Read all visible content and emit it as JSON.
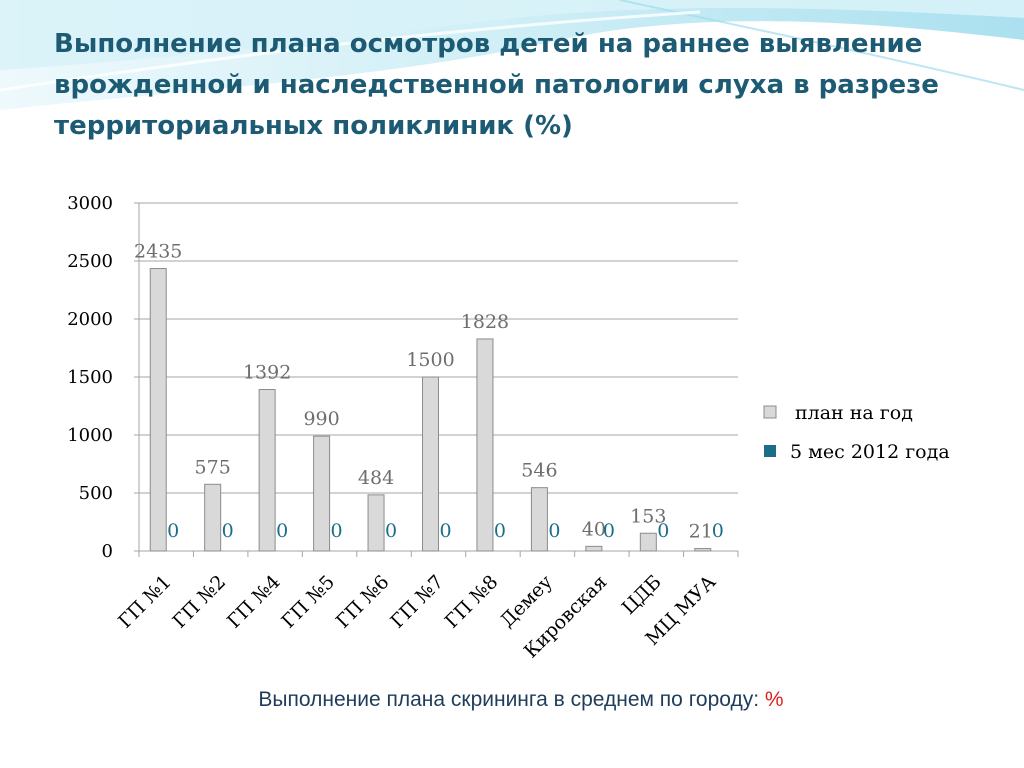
{
  "title": "Выполнение плана осмотров детей на раннее выявление врожденной и наследственной патологии слуха в разрезе территориальных поликлиник (%)",
  "footer": {
    "text": "Выполнение плана скрининга в среднем по городу: ",
    "value": "%"
  },
  "colors": {
    "title": "#1d5a73",
    "series1_fill": "#d9d9d9",
    "series1_stroke": "#8c8c8c",
    "series2_fill": "#1a6e8a",
    "grid": "#a6a6a6",
    "wave": "#7fd3e6"
  },
  "chart_data": {
    "type": "bar",
    "title": "",
    "xlabel": "",
    "ylabel": "",
    "ylim": [
      0,
      3000
    ],
    "yticks": [
      "0",
      "500",
      "1000",
      "1500",
      "2000",
      "2500",
      "3000"
    ],
    "grid": true,
    "legend_position": "right",
    "categories": [
      "ГП №1",
      "ГП №2",
      "ГП №4",
      "ГП №5",
      "ГП №6",
      "ГП  №7",
      "ГП №8",
      "Демеу",
      "Кировская",
      "ЦДБ",
      "МЦ МУА"
    ],
    "series": [
      {
        "name": "план на год",
        "values": [
          2435,
          575,
          1392,
          990,
          484,
          1500,
          1828,
          546,
          40,
          153,
          21
        ],
        "labels": [
          "2435",
          "575",
          "1392",
          "990",
          "484",
          "1500",
          "1828",
          "546",
          "40",
          "153",
          "21"
        ]
      },
      {
        "name": "5 мес 2012 года",
        "values": [
          0,
          0,
          0,
          0,
          0,
          0,
          0,
          0,
          0,
          0,
          0
        ],
        "labels": [
          "0",
          "0",
          "0",
          "0",
          "0",
          "0",
          "0",
          "0",
          "0",
          "0",
          "0"
        ]
      }
    ]
  }
}
